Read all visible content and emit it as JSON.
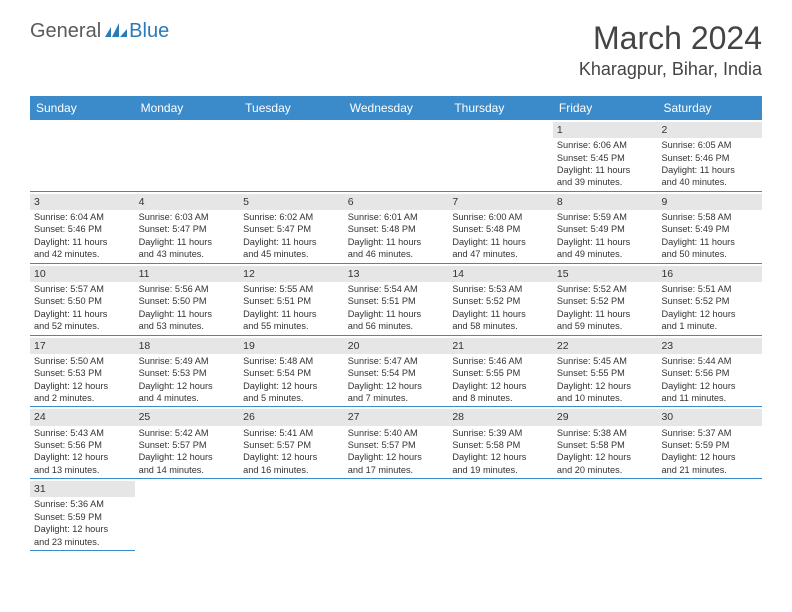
{
  "logo": {
    "general": "General",
    "blue": "Blue"
  },
  "title": "March 2024",
  "location": "Kharagpur, Bihar, India",
  "colors": {
    "header_bg": "#3b8aca",
    "header_text": "#ffffff",
    "daynum_bg": "#e6e6e6",
    "cell_border": "#3b8aca",
    "body_text": "#333333",
    "logo_gray": "#5a5a5a",
    "logo_blue": "#2a7ab8"
  },
  "day_names": [
    "Sunday",
    "Monday",
    "Tuesday",
    "Wednesday",
    "Thursday",
    "Friday",
    "Saturday"
  ],
  "weeks": [
    [
      null,
      null,
      null,
      null,
      null,
      {
        "n": "1",
        "sr": "Sunrise: 6:06 AM",
        "ss": "Sunset: 5:45 PM",
        "d1": "Daylight: 11 hours",
        "d2": "and 39 minutes."
      },
      {
        "n": "2",
        "sr": "Sunrise: 6:05 AM",
        "ss": "Sunset: 5:46 PM",
        "d1": "Daylight: 11 hours",
        "d2": "and 40 minutes."
      }
    ],
    [
      {
        "n": "3",
        "sr": "Sunrise: 6:04 AM",
        "ss": "Sunset: 5:46 PM",
        "d1": "Daylight: 11 hours",
        "d2": "and 42 minutes."
      },
      {
        "n": "4",
        "sr": "Sunrise: 6:03 AM",
        "ss": "Sunset: 5:47 PM",
        "d1": "Daylight: 11 hours",
        "d2": "and 43 minutes."
      },
      {
        "n": "5",
        "sr": "Sunrise: 6:02 AM",
        "ss": "Sunset: 5:47 PM",
        "d1": "Daylight: 11 hours",
        "d2": "and 45 minutes."
      },
      {
        "n": "6",
        "sr": "Sunrise: 6:01 AM",
        "ss": "Sunset: 5:48 PM",
        "d1": "Daylight: 11 hours",
        "d2": "and 46 minutes."
      },
      {
        "n": "7",
        "sr": "Sunrise: 6:00 AM",
        "ss": "Sunset: 5:48 PM",
        "d1": "Daylight: 11 hours",
        "d2": "and 47 minutes."
      },
      {
        "n": "8",
        "sr": "Sunrise: 5:59 AM",
        "ss": "Sunset: 5:49 PM",
        "d1": "Daylight: 11 hours",
        "d2": "and 49 minutes."
      },
      {
        "n": "9",
        "sr": "Sunrise: 5:58 AM",
        "ss": "Sunset: 5:49 PM",
        "d1": "Daylight: 11 hours",
        "d2": "and 50 minutes."
      }
    ],
    [
      {
        "n": "10",
        "sr": "Sunrise: 5:57 AM",
        "ss": "Sunset: 5:50 PM",
        "d1": "Daylight: 11 hours",
        "d2": "and 52 minutes."
      },
      {
        "n": "11",
        "sr": "Sunrise: 5:56 AM",
        "ss": "Sunset: 5:50 PM",
        "d1": "Daylight: 11 hours",
        "d2": "and 53 minutes."
      },
      {
        "n": "12",
        "sr": "Sunrise: 5:55 AM",
        "ss": "Sunset: 5:51 PM",
        "d1": "Daylight: 11 hours",
        "d2": "and 55 minutes."
      },
      {
        "n": "13",
        "sr": "Sunrise: 5:54 AM",
        "ss": "Sunset: 5:51 PM",
        "d1": "Daylight: 11 hours",
        "d2": "and 56 minutes."
      },
      {
        "n": "14",
        "sr": "Sunrise: 5:53 AM",
        "ss": "Sunset: 5:52 PM",
        "d1": "Daylight: 11 hours",
        "d2": "and 58 minutes."
      },
      {
        "n": "15",
        "sr": "Sunrise: 5:52 AM",
        "ss": "Sunset: 5:52 PM",
        "d1": "Daylight: 11 hours",
        "d2": "and 59 minutes."
      },
      {
        "n": "16",
        "sr": "Sunrise: 5:51 AM",
        "ss": "Sunset: 5:52 PM",
        "d1": "Daylight: 12 hours",
        "d2": "and 1 minute."
      }
    ],
    [
      {
        "n": "17",
        "sr": "Sunrise: 5:50 AM",
        "ss": "Sunset: 5:53 PM",
        "d1": "Daylight: 12 hours",
        "d2": "and 2 minutes."
      },
      {
        "n": "18",
        "sr": "Sunrise: 5:49 AM",
        "ss": "Sunset: 5:53 PM",
        "d1": "Daylight: 12 hours",
        "d2": "and 4 minutes."
      },
      {
        "n": "19",
        "sr": "Sunrise: 5:48 AM",
        "ss": "Sunset: 5:54 PM",
        "d1": "Daylight: 12 hours",
        "d2": "and 5 minutes."
      },
      {
        "n": "20",
        "sr": "Sunrise: 5:47 AM",
        "ss": "Sunset: 5:54 PM",
        "d1": "Daylight: 12 hours",
        "d2": "and 7 minutes."
      },
      {
        "n": "21",
        "sr": "Sunrise: 5:46 AM",
        "ss": "Sunset: 5:55 PM",
        "d1": "Daylight: 12 hours",
        "d2": "and 8 minutes."
      },
      {
        "n": "22",
        "sr": "Sunrise: 5:45 AM",
        "ss": "Sunset: 5:55 PM",
        "d1": "Daylight: 12 hours",
        "d2": "and 10 minutes."
      },
      {
        "n": "23",
        "sr": "Sunrise: 5:44 AM",
        "ss": "Sunset: 5:56 PM",
        "d1": "Daylight: 12 hours",
        "d2": "and 11 minutes."
      }
    ],
    [
      {
        "n": "24",
        "sr": "Sunrise: 5:43 AM",
        "ss": "Sunset: 5:56 PM",
        "d1": "Daylight: 12 hours",
        "d2": "and 13 minutes."
      },
      {
        "n": "25",
        "sr": "Sunrise: 5:42 AM",
        "ss": "Sunset: 5:57 PM",
        "d1": "Daylight: 12 hours",
        "d2": "and 14 minutes."
      },
      {
        "n": "26",
        "sr": "Sunrise: 5:41 AM",
        "ss": "Sunset: 5:57 PM",
        "d1": "Daylight: 12 hours",
        "d2": "and 16 minutes."
      },
      {
        "n": "27",
        "sr": "Sunrise: 5:40 AM",
        "ss": "Sunset: 5:57 PM",
        "d1": "Daylight: 12 hours",
        "d2": "and 17 minutes."
      },
      {
        "n": "28",
        "sr": "Sunrise: 5:39 AM",
        "ss": "Sunset: 5:58 PM",
        "d1": "Daylight: 12 hours",
        "d2": "and 19 minutes."
      },
      {
        "n": "29",
        "sr": "Sunrise: 5:38 AM",
        "ss": "Sunset: 5:58 PM",
        "d1": "Daylight: 12 hours",
        "d2": "and 20 minutes."
      },
      {
        "n": "30",
        "sr": "Sunrise: 5:37 AM",
        "ss": "Sunset: 5:59 PM",
        "d1": "Daylight: 12 hours",
        "d2": "and 21 minutes."
      }
    ],
    [
      {
        "n": "31",
        "sr": "Sunrise: 5:36 AM",
        "ss": "Sunset: 5:59 PM",
        "d1": "Daylight: 12 hours",
        "d2": "and 23 minutes."
      },
      null,
      null,
      null,
      null,
      null,
      null
    ]
  ]
}
